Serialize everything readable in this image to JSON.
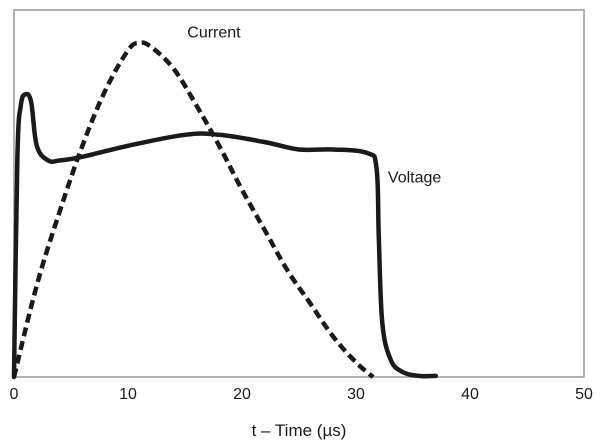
{
  "chart_data": {
    "type": "line",
    "title": "",
    "xlabel": "t – Time (µs)",
    "ylabel": "",
    "xlim": [
      0,
      50
    ],
    "ylim": [
      0,
      1
    ],
    "x_ticks": [
      0,
      10,
      20,
      30,
      40,
      50
    ],
    "x_tick_labels": [
      "0",
      "10",
      "20",
      "30",
      "40",
      "50"
    ],
    "grid": false,
    "legend": "none",
    "frame_color": "#9a9a9a",
    "line_color": "#1a1a1a",
    "series": [
      {
        "name": "Current",
        "style": "dashed",
        "x": [
          0,
          2,
          4,
          6,
          8,
          10,
          11,
          12,
          14,
          16,
          18,
          20,
          22,
          24,
          26,
          28,
          30,
          31.5
        ],
        "y": [
          0,
          0.25,
          0.45,
          0.63,
          0.78,
          0.89,
          0.91,
          0.9,
          0.84,
          0.74,
          0.63,
          0.51,
          0.4,
          0.29,
          0.2,
          0.11,
          0.04,
          0
        ]
      },
      {
        "name": "Voltage",
        "style": "solid",
        "x": [
          0,
          0.3,
          0.6,
          1.0,
          1.5,
          2.0,
          3.0,
          4.0,
          6.0,
          10.0,
          15.0,
          18.0,
          22.0,
          25.0,
          28.0,
          31.0,
          31.8,
          32.0,
          32.3,
          33.0,
          34.0,
          35.5,
          37.0
        ],
        "y": [
          0,
          0.6,
          0.74,
          0.77,
          0.75,
          0.63,
          0.59,
          0.59,
          0.6,
          0.63,
          0.66,
          0.66,
          0.64,
          0.62,
          0.62,
          0.61,
          0.57,
          0.38,
          0.15,
          0.05,
          0.015,
          0.003,
          0.003
        ]
      }
    ],
    "annotations": [
      {
        "text": "Current",
        "x": 15.2,
        "y": 0.925
      },
      {
        "text": "Voltage",
        "x": 32.8,
        "y": 0.53
      }
    ]
  }
}
